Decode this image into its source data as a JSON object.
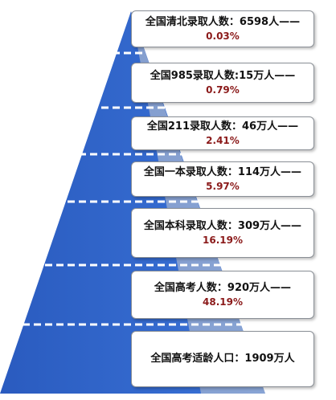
{
  "colors": {
    "pyramid_blue": "#2f63c9",
    "shade_gray": "#d4d7dc",
    "divider": "#ffffff",
    "percent_text": "#8b1a1a"
  },
  "tiers": [
    {
      "label": "全国清北录取人数：6598人——",
      "percent": "0.03%"
    },
    {
      "label": "全国985录取人数:15万人——",
      "percent": "0.79%"
    },
    {
      "label": "全国211录取人数：46万人——",
      "percent": "2.41%"
    },
    {
      "label": "全国一本录取人数：114万人——",
      "percent": "5.97%"
    },
    {
      "label": "全国本科录取人数：309万人——",
      "percent": "16.19%"
    },
    {
      "label": "全国高考人数：920万人——",
      "percent": "48.19%"
    },
    {
      "label": "全国高考适龄人口：1909万人",
      "percent": ""
    }
  ]
}
